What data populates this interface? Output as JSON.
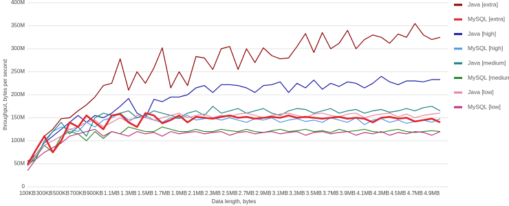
{
  "chart_data": {
    "type": "line",
    "x_label": "Data length, bytes",
    "y_label": "throughput, bytes per second",
    "categories": [
      "100KB",
      null,
      "300KB",
      null,
      "500KB",
      null,
      "700KB",
      null,
      "900KB",
      null,
      "1.1MB",
      null,
      "1.3MB",
      null,
      "1.5MB",
      null,
      "1.7MB",
      null,
      "1.9MB",
      null,
      "2.1MB",
      null,
      "2.3MB",
      null,
      "2.5MB",
      null,
      "2.7MB",
      null,
      "2.9MB",
      null,
      "3.1MB",
      null,
      "3.3MB",
      null,
      "3.5MB",
      null,
      "3.7MB",
      null,
      "3.9MB",
      null,
      "4.1MB",
      null,
      "4.3MB",
      null,
      "4.5MB",
      null,
      "4.7MB",
      null,
      "4.9MB",
      null
    ],
    "ylim": [
      0,
      400000000.0
    ],
    "yticks": [
      0,
      {
        "value": 50000000.0,
        "label": "50M"
      },
      {
        "value": 100000000.0,
        "label": "100M"
      },
      {
        "value": 150000000.0,
        "label": "150M"
      },
      {
        "value": 200000000.0,
        "label": "200M"
      },
      {
        "value": 250000000.0,
        "label": "250M"
      },
      {
        "value": 300000000.0,
        "label": "300M"
      },
      {
        "value": 350000000.0,
        "label": "350M"
      },
      {
        "value": 400000000.0,
        "label": "400M"
      }
    ],
    "grid": true,
    "legend": "right",
    "series": [
      {
        "name": "Java [extra]",
        "color": "#8b0000",
        "values": [
          48000000.0,
          80000000.0,
          110000000.0,
          125000000.0,
          148000000.0,
          150000000.0,
          165000000.0,
          178000000.0,
          195000000.0,
          220000000.0,
          225000000.0,
          278000000.0,
          210000000.0,
          250000000.0,
          225000000.0,
          258000000.0,
          302000000.0,
          215000000.0,
          250000000.0,
          220000000.0,
          283000000.0,
          280000000.0,
          255000000.0,
          300000000.0,
          305000000.0,
          255000000.0,
          300000000.0,
          270000000.0,
          302000000.0,
          285000000.0,
          278000000.0,
          280000000.0,
          305000000.0,
          333000000.0,
          292000000.0,
          335000000.0,
          300000000.0,
          312000000.0,
          340000000.0,
          300000000.0,
          320000000.0,
          330000000.0,
          325000000.0,
          312000000.0,
          332000000.0,
          325000000.0,
          355000000.0,
          330000000.0,
          320000000.0,
          325000000.0
        ]
      },
      {
        "name": "MySQL [extra]",
        "color": "#e0262b",
        "values": [
          48000000.0,
          80000000.0,
          110000000.0,
          75000000.0,
          100000000.0,
          140000000.0,
          130000000.0,
          155000000.0,
          140000000.0,
          125000000.0,
          155000000.0,
          158000000.0,
          140000000.0,
          130000000.0,
          160000000.0,
          155000000.0,
          138000000.0,
          145000000.0,
          155000000.0,
          140000000.0,
          152000000.0,
          150000000.0,
          148000000.0,
          152000000.0,
          155000000.0,
          150000000.0,
          152000000.0,
          148000000.0,
          150000000.0,
          152000000.0,
          150000000.0,
          155000000.0,
          150000000.0,
          152000000.0,
          150000000.0,
          148000000.0,
          150000000.0,
          152000000.0,
          148000000.0,
          150000000.0,
          148000000.0,
          140000000.0,
          150000000.0,
          152000000.0,
          148000000.0,
          150000000.0,
          142000000.0,
          145000000.0,
          148000000.0,
          140000000.0
        ]
      },
      {
        "name": "Java [high]",
        "color": "#1b1ba6",
        "values": [
          55000000.0,
          70000000.0,
          95000000.0,
          110000000.0,
          125000000.0,
          140000000.0,
          155000000.0,
          140000000.0,
          155000000.0,
          150000000.0,
          160000000.0,
          175000000.0,
          192000000.0,
          160000000.0,
          150000000.0,
          190000000.0,
          185000000.0,
          195000000.0,
          195000000.0,
          200000000.0,
          215000000.0,
          220000000.0,
          205000000.0,
          222000000.0,
          222000000.0,
          220000000.0,
          215000000.0,
          205000000.0,
          220000000.0,
          222000000.0,
          228000000.0,
          205000000.0,
          225000000.0,
          215000000.0,
          232000000.0,
          212000000.0,
          225000000.0,
          218000000.0,
          228000000.0,
          225000000.0,
          215000000.0,
          225000000.0,
          240000000.0,
          228000000.0,
          222000000.0,
          230000000.0,
          230000000.0,
          228000000.0,
          233000000.0,
          233000000.0
        ]
      },
      {
        "name": "MySQL [high]",
        "color": "#4a98e8",
        "values": [
          50000000.0,
          70000000.0,
          95000000.0,
          120000000.0,
          130000000.0,
          125000000.0,
          120000000.0,
          140000000.0,
          130000000.0,
          145000000.0,
          150000000.0,
          160000000.0,
          145000000.0,
          150000000.0,
          155000000.0,
          145000000.0,
          140000000.0,
          150000000.0,
          148000000.0,
          155000000.0,
          145000000.0,
          148000000.0,
          150000000.0,
          145000000.0,
          150000000.0,
          145000000.0,
          140000000.0,
          148000000.0,
          145000000.0,
          150000000.0,
          140000000.0,
          145000000.0,
          148000000.0,
          142000000.0,
          145000000.0,
          140000000.0,
          150000000.0,
          145000000.0,
          140000000.0,
          150000000.0,
          135000000.0,
          145000000.0,
          148000000.0,
          140000000.0,
          145000000.0,
          138000000.0,
          142000000.0,
          145000000.0,
          140000000.0,
          148000000.0
        ]
      },
      {
        "name": "Java [medium]",
        "color": "#1a8080",
        "values": [
          48000000.0,
          60000000.0,
          100000000.0,
          120000000.0,
          140000000.0,
          115000000.0,
          130000000.0,
          110000000.0,
          150000000.0,
          160000000.0,
          155000000.0,
          160000000.0,
          165000000.0,
          150000000.0,
          155000000.0,
          165000000.0,
          160000000.0,
          155000000.0,
          150000000.0,
          160000000.0,
          165000000.0,
          155000000.0,
          175000000.0,
          160000000.0,
          165000000.0,
          170000000.0,
          160000000.0,
          165000000.0,
          170000000.0,
          160000000.0,
          155000000.0,
          165000000.0,
          170000000.0,
          168000000.0,
          160000000.0,
          165000000.0,
          170000000.0,
          160000000.0,
          165000000.0,
          168000000.0,
          160000000.0,
          165000000.0,
          168000000.0,
          162000000.0,
          165000000.0,
          170000000.0,
          165000000.0,
          172000000.0,
          175000000.0,
          165000000.0
        ]
      },
      {
        "name": "MySQL [medium]",
        "color": "#2a8a2a",
        "values": [
          45000000.0,
          65000000.0,
          90000000.0,
          75000000.0,
          110000000.0,
          120000000.0,
          115000000.0,
          100000000.0,
          120000000.0,
          105000000.0,
          120000000.0,
          115000000.0,
          130000000.0,
          125000000.0,
          120000000.0,
          120000000.0,
          130000000.0,
          125000000.0,
          120000000.0,
          120000000.0,
          125000000.0,
          120000000.0,
          120000000.0,
          125000000.0,
          122000000.0,
          120000000.0,
          125000000.0,
          120000000.0,
          118000000.0,
          122000000.0,
          125000000.0,
          120000000.0,
          122000000.0,
          125000000.0,
          120000000.0,
          122000000.0,
          118000000.0,
          125000000.0,
          120000000.0,
          122000000.0,
          125000000.0,
          120000000.0,
          118000000.0,
          122000000.0,
          125000000.0,
          120000000.0,
          118000000.0,
          120000000.0,
          122000000.0,
          120000000.0
        ]
      },
      {
        "name": "Java [low]",
        "color": "#e5849f",
        "values": [
          45000000.0,
          70000000.0,
          90000000.0,
          100000000.0,
          110000000.0,
          125000000.0,
          130000000.0,
          140000000.0,
          145000000.0,
          130000000.0,
          140000000.0,
          150000000.0,
          140000000.0,
          155000000.0,
          150000000.0,
          145000000.0,
          150000000.0,
          155000000.0,
          160000000.0,
          150000000.0,
          155000000.0,
          158000000.0,
          150000000.0,
          155000000.0,
          152000000.0,
          158000000.0,
          160000000.0,
          155000000.0,
          150000000.0,
          155000000.0,
          158000000.0,
          160000000.0,
          155000000.0,
          150000000.0,
          158000000.0,
          160000000.0,
          155000000.0,
          152000000.0,
          158000000.0,
          160000000.0,
          150000000.0,
          155000000.0,
          158000000.0,
          160000000.0,
          152000000.0,
          158000000.0,
          150000000.0,
          155000000.0,
          158000000.0,
          160000000.0
        ]
      },
      {
        "name": "MySQL [low]",
        "color": "#c0307f",
        "values": [
          35000000.0,
          60000000.0,
          75000000.0,
          85000000.0,
          95000000.0,
          110000000.0,
          115000000.0,
          120000000.0,
          125000000.0,
          110000000.0,
          120000000.0,
          115000000.0,
          110000000.0,
          120000000.0,
          115000000.0,
          118000000.0,
          110000000.0,
          120000000.0,
          115000000.0,
          118000000.0,
          120000000.0,
          115000000.0,
          118000000.0,
          120000000.0,
          112000000.0,
          118000000.0,
          120000000.0,
          115000000.0,
          118000000.0,
          120000000.0,
          115000000.0,
          118000000.0,
          120000000.0,
          112000000.0,
          118000000.0,
          120000000.0,
          115000000.0,
          118000000.0,
          120000000.0,
          112000000.0,
          118000000.0,
          115000000.0,
          120000000.0,
          112000000.0,
          118000000.0,
          115000000.0,
          120000000.0,
          118000000.0,
          112000000.0,
          120000000.0
        ]
      }
    ]
  }
}
